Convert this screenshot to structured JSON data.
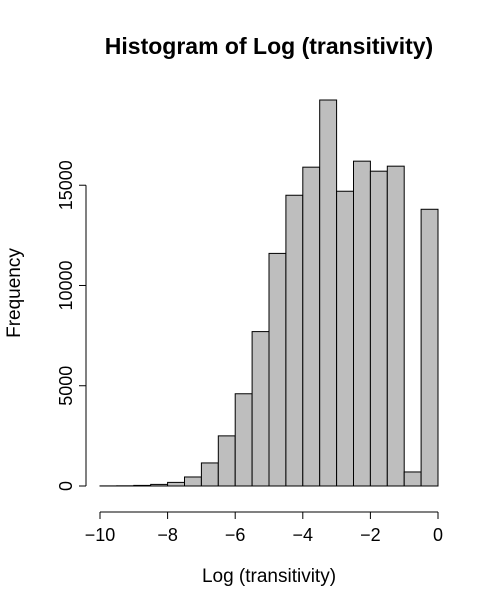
{
  "chart_data": {
    "type": "bar",
    "title": "Histogram of Log (transitivity)",
    "xlabel": "Log (transitivity)",
    "ylabel": "Frequency",
    "bar_color": "#bebebe",
    "bin_width": 0.5,
    "bins": [
      {
        "x0": -10.0,
        "x1": -9.5,
        "value": 5
      },
      {
        "x0": -9.5,
        "x1": -9.0,
        "value": 10
      },
      {
        "x0": -9.0,
        "x1": -8.5,
        "value": 30
      },
      {
        "x0": -8.5,
        "x1": -8.0,
        "value": 80
      },
      {
        "x0": -8.0,
        "x1": -7.5,
        "value": 180
      },
      {
        "x0": -7.5,
        "x1": -7.0,
        "value": 450
      },
      {
        "x0": -7.0,
        "x1": -6.5,
        "value": 1150
      },
      {
        "x0": -6.5,
        "x1": -6.0,
        "value": 2500
      },
      {
        "x0": -6.0,
        "x1": -5.5,
        "value": 4600
      },
      {
        "x0": -5.5,
        "x1": -5.0,
        "value": 7700
      },
      {
        "x0": -5.0,
        "x1": -4.5,
        "value": 11600
      },
      {
        "x0": -4.5,
        "x1": -4.0,
        "value": 14500
      },
      {
        "x0": -4.0,
        "x1": -3.5,
        "value": 15900
      },
      {
        "x0": -3.5,
        "x1": -3.0,
        "value": 19250
      },
      {
        "x0": -3.0,
        "x1": -2.5,
        "value": 14700
      },
      {
        "x0": -2.5,
        "x1": -2.0,
        "value": 16200
      },
      {
        "x0": -2.0,
        "x1": -1.5,
        "value": 15700
      },
      {
        "x0": -1.5,
        "x1": -1.0,
        "value": 15950
      },
      {
        "x0": -1.0,
        "x1": -0.5,
        "value": 700
      },
      {
        "x0": -0.5,
        "x1": 0.0,
        "value": 13800
      }
    ],
    "xlim": [
      -10,
      0
    ],
    "ylim": [
      0,
      19250
    ],
    "xticks": [
      -10,
      -8,
      -6,
      -4,
      -2,
      0
    ],
    "xtick_labels": [
      "−10",
      "−8",
      "−6",
      "−4",
      "−2",
      "0"
    ],
    "yticks": [
      0,
      5000,
      10000,
      15000
    ],
    "ytick_labels": [
      "0",
      "5000",
      "10000",
      "15000"
    ],
    "grid": false,
    "legend": "none"
  }
}
